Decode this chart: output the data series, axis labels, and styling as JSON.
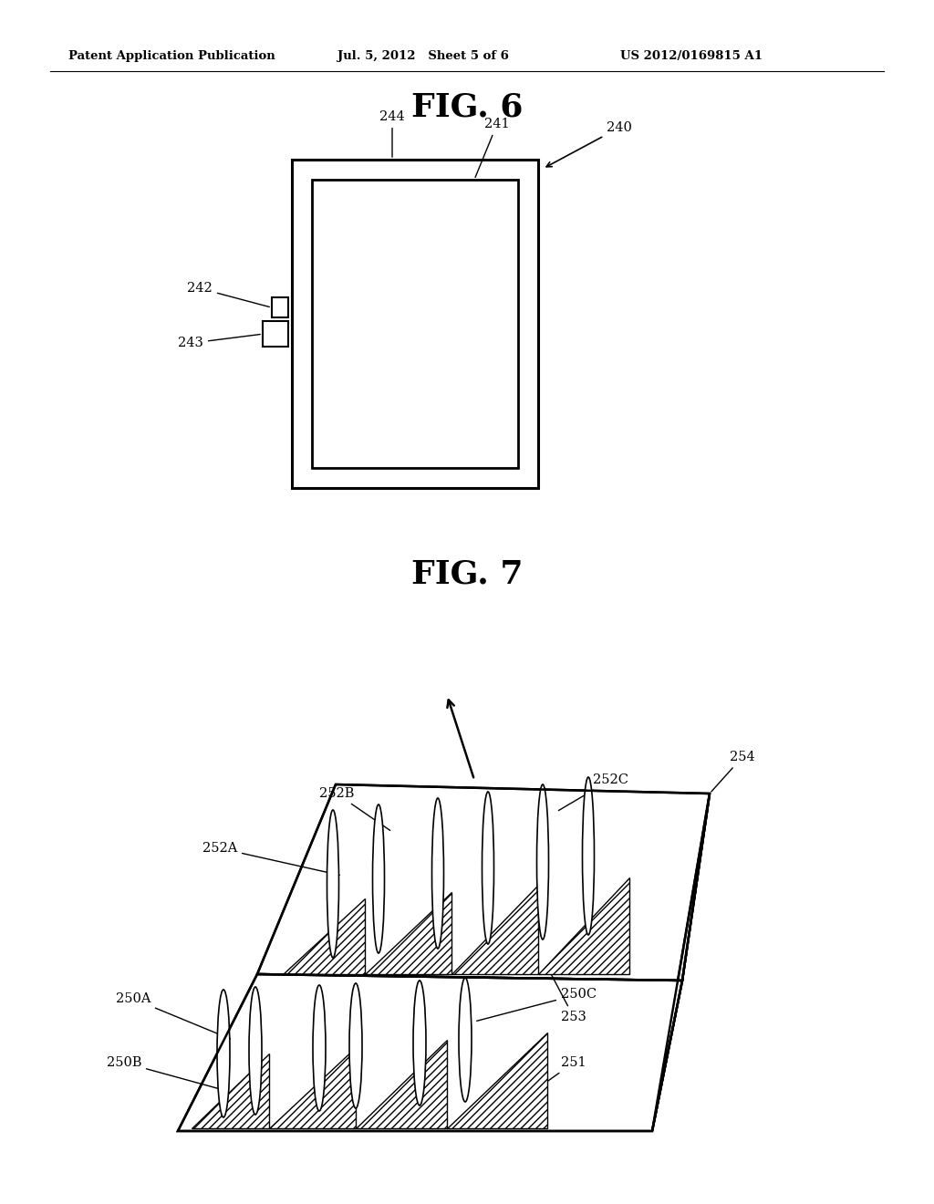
{
  "background_color": "#ffffff",
  "header_left": "Patent Application Publication",
  "header_mid": "Jul. 5, 2012   Sheet 5 of 6",
  "header_right": "US 2012/0169815 A1",
  "fig6_title": "FIG. 6",
  "fig7_title": "FIG. 7"
}
